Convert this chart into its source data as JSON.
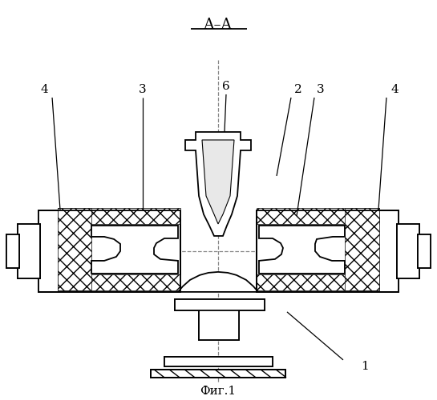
{
  "bg_color": "#ffffff",
  "line_color": "#000000",
  "title": "А–А",
  "caption": "Фиг.1"
}
